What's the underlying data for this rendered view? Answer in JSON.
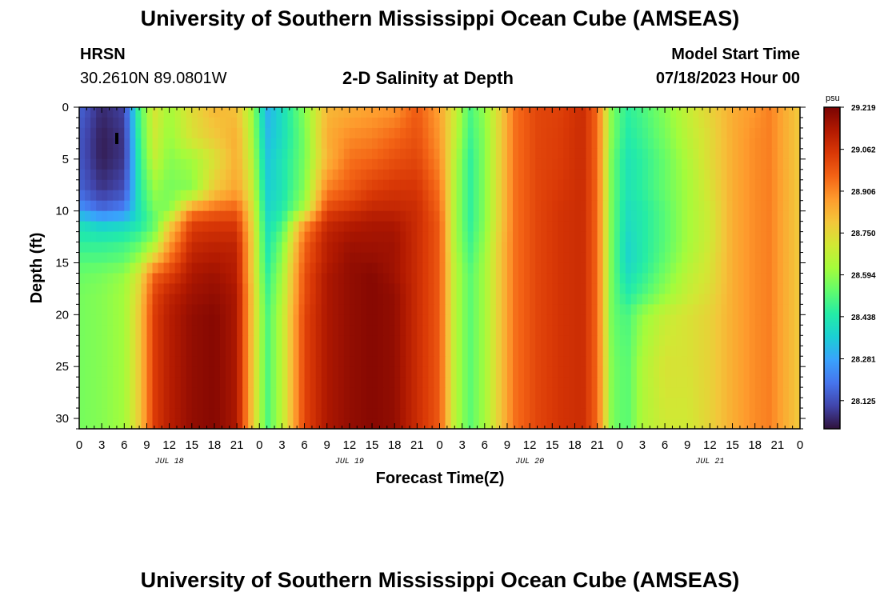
{
  "header": {
    "title": "University of Southern Mississippi Ocean Cube (AMSEAS)",
    "station_name": "HRSN",
    "station_coords": "30.2610N  89.0801W",
    "plot_subtitle": "2-D Salinity at Depth",
    "model_start_label": "Model Start Time",
    "model_start_value": "07/18/2023 Hour 00"
  },
  "footer": {
    "title": "University of Southern Mississippi Ocean Cube (AMSEAS)"
  },
  "chart_data": {
    "type": "heatmap",
    "title": "2-D Salinity at Depth",
    "xlabel": "Forecast Time(Z)",
    "ylabel": "Depth (ft)",
    "x_units": "hours since 07/18/2023 00Z",
    "xlim": [
      0,
      96
    ],
    "ylim": [
      0,
      31
    ],
    "y_inverted": true,
    "x_tick_values": [
      0,
      3,
      6,
      9,
      12,
      15,
      18,
      21,
      24,
      27,
      30,
      33,
      36,
      39,
      42,
      45,
      48,
      51,
      54,
      57,
      60,
      63,
      66,
      69,
      72,
      75,
      78,
      81,
      84,
      87,
      90,
      93,
      96
    ],
    "x_tick_labels": [
      "0",
      "3",
      "6",
      "9",
      "12",
      "15",
      "18",
      "21",
      "0",
      "3",
      "6",
      "9",
      "12",
      "15",
      "18",
      "21",
      "0",
      "3",
      "6",
      "9",
      "12",
      "15",
      "18",
      "21",
      "0",
      "3",
      "6",
      "9",
      "12",
      "15",
      "18",
      "21",
      "0"
    ],
    "day_labels": [
      {
        "label": "JUL 18",
        "hour": 12
      },
      {
        "label": "JUL 19",
        "hour": 36
      },
      {
        "label": "JUL 20",
        "hour": 60
      },
      {
        "label": "JUL 21",
        "hour": 84
      }
    ],
    "y_tick_values": [
      0,
      5,
      10,
      15,
      20,
      25,
      30
    ],
    "y_tick_labels": [
      "0",
      "5",
      "10",
      "15",
      "20",
      "25",
      "30"
    ],
    "colorbar": {
      "units": "psu",
      "min": 28.02,
      "max": 29.219,
      "tick_labels": [
        "29.219",
        "29.062",
        "28.906",
        "28.750",
        "28.594",
        "28.438",
        "28.281",
        "28.125"
      ],
      "tick_values": [
        29.219,
        29.062,
        28.906,
        28.75,
        28.594,
        28.438,
        28.281,
        28.125
      ],
      "colormap": [
        "#30123b",
        "#4145ab",
        "#4675ed",
        "#39a2fc",
        "#1bcfd4",
        "#24eca6",
        "#61fc6c",
        "#a4fc3b",
        "#d1e834",
        "#f3c63a",
        "#fe9b2d",
        "#f36315",
        "#d93806",
        "#b11901",
        "#7a0403"
      ]
    },
    "depths_ft": [
      0,
      3,
      5,
      8,
      10,
      11,
      13,
      15,
      16,
      18,
      20,
      25,
      31
    ],
    "hours": [
      0,
      3,
      6,
      8,
      10,
      12,
      15,
      18,
      21,
      23,
      25,
      27,
      30,
      33,
      36,
      39,
      42,
      45,
      48,
      50,
      52,
      54,
      56,
      58,
      61,
      64,
      67,
      69,
      71,
      73,
      75,
      78,
      81,
      84,
      87,
      90,
      92,
      94,
      96
    ],
    "salinity_psu": [
      [
        28.16,
        28.06,
        28.1,
        28.5,
        28.72,
        28.62,
        28.74,
        28.82,
        28.8,
        28.62,
        28.3,
        28.4,
        28.58,
        28.82,
        28.84,
        28.86,
        28.88,
        28.98,
        28.86,
        28.7,
        28.5,
        28.6,
        28.76,
        28.94,
        29.02,
        29.03,
        29.08,
        28.96,
        28.56,
        28.46,
        28.5,
        28.58,
        28.68,
        28.76,
        28.84,
        28.88,
        28.92,
        28.84,
        28.78
      ],
      [
        28.14,
        28.04,
        28.08,
        28.48,
        28.7,
        28.6,
        28.72,
        28.78,
        28.84,
        28.64,
        28.32,
        28.4,
        28.56,
        28.84,
        28.9,
        28.92,
        28.96,
        29.0,
        28.88,
        28.68,
        28.48,
        28.58,
        28.76,
        28.94,
        29.02,
        29.04,
        29.08,
        28.96,
        28.56,
        28.44,
        28.48,
        28.56,
        28.66,
        28.74,
        28.84,
        28.9,
        28.92,
        28.84,
        28.78
      ],
      [
        28.14,
        28.04,
        28.08,
        28.46,
        28.68,
        28.58,
        28.62,
        28.72,
        28.84,
        28.66,
        28.34,
        28.42,
        28.56,
        28.82,
        28.94,
        28.96,
        29.0,
        29.02,
        28.9,
        28.66,
        28.46,
        28.58,
        28.76,
        28.94,
        29.02,
        29.04,
        29.08,
        28.96,
        28.54,
        28.42,
        28.46,
        28.54,
        28.64,
        28.74,
        28.84,
        28.9,
        28.92,
        28.84,
        28.78
      ],
      [
        28.16,
        28.08,
        28.12,
        28.44,
        28.6,
        28.56,
        28.58,
        28.78,
        28.86,
        28.7,
        28.36,
        28.42,
        28.58,
        28.92,
        28.98,
        29.04,
        29.06,
        29.06,
        28.94,
        28.64,
        28.46,
        28.58,
        28.76,
        28.94,
        29.02,
        29.05,
        29.08,
        28.96,
        28.54,
        28.42,
        28.46,
        28.54,
        28.62,
        28.72,
        28.84,
        28.9,
        28.92,
        28.84,
        28.78
      ],
      [
        28.26,
        28.18,
        28.22,
        28.42,
        28.56,
        28.58,
        28.9,
        28.96,
        28.98,
        28.74,
        28.38,
        28.44,
        28.64,
        29.02,
        29.06,
        29.1,
        29.1,
        29.08,
        28.96,
        28.64,
        28.46,
        28.58,
        28.76,
        28.94,
        29.02,
        29.06,
        29.08,
        28.96,
        28.54,
        28.4,
        28.44,
        28.52,
        28.62,
        28.7,
        28.84,
        28.9,
        28.92,
        28.84,
        28.78
      ],
      [
        28.4,
        28.34,
        28.36,
        28.42,
        28.52,
        28.74,
        29.02,
        29.04,
        29.04,
        28.76,
        28.4,
        28.48,
        28.86,
        29.08,
        29.12,
        29.14,
        29.14,
        29.08,
        28.98,
        28.64,
        28.46,
        28.58,
        28.76,
        28.94,
        29.02,
        29.06,
        29.08,
        28.96,
        28.54,
        28.4,
        28.44,
        28.52,
        28.62,
        28.7,
        28.84,
        28.9,
        28.92,
        28.84,
        28.78
      ],
      [
        28.46,
        28.46,
        28.48,
        28.52,
        28.62,
        28.86,
        29.08,
        29.1,
        29.1,
        28.78,
        28.42,
        28.56,
        28.96,
        29.12,
        29.16,
        29.16,
        29.16,
        29.08,
        28.98,
        28.64,
        28.48,
        28.6,
        28.78,
        28.94,
        29.02,
        29.06,
        29.08,
        28.96,
        28.54,
        28.38,
        28.44,
        28.52,
        28.62,
        28.7,
        28.84,
        28.9,
        28.92,
        28.84,
        28.78
      ],
      [
        28.52,
        28.52,
        28.54,
        28.64,
        28.82,
        28.96,
        29.12,
        29.14,
        29.12,
        28.78,
        28.44,
        28.6,
        28.98,
        29.12,
        29.18,
        29.18,
        29.16,
        29.08,
        28.98,
        28.66,
        28.5,
        28.62,
        28.78,
        28.94,
        29.02,
        29.06,
        29.08,
        28.96,
        28.54,
        28.38,
        28.44,
        28.54,
        28.64,
        28.72,
        28.84,
        28.9,
        28.92,
        28.84,
        28.78
      ],
      [
        28.54,
        28.56,
        28.6,
        28.72,
        28.96,
        29.02,
        29.14,
        29.16,
        29.12,
        28.78,
        28.46,
        28.62,
        29.0,
        29.14,
        29.18,
        29.2,
        29.16,
        29.08,
        28.98,
        28.66,
        28.52,
        28.62,
        28.78,
        28.94,
        29.02,
        29.06,
        29.08,
        28.96,
        28.54,
        28.4,
        28.46,
        28.56,
        28.66,
        28.72,
        28.84,
        28.9,
        28.92,
        28.84,
        28.78
      ],
      [
        28.56,
        28.58,
        28.62,
        28.76,
        29.02,
        29.1,
        29.16,
        29.18,
        29.14,
        28.8,
        28.48,
        28.64,
        29.0,
        29.14,
        29.18,
        29.2,
        29.18,
        29.08,
        28.98,
        28.66,
        28.52,
        28.62,
        28.78,
        28.94,
        29.02,
        29.06,
        29.08,
        28.96,
        28.54,
        28.44,
        28.5,
        28.6,
        28.68,
        28.74,
        28.84,
        28.9,
        28.92,
        28.84,
        28.78
      ],
      [
        28.56,
        28.58,
        28.62,
        28.78,
        29.04,
        29.12,
        29.18,
        29.2,
        29.14,
        28.8,
        28.5,
        28.66,
        29.02,
        29.14,
        29.18,
        29.2,
        29.18,
        29.08,
        28.98,
        28.66,
        28.52,
        28.62,
        28.78,
        28.94,
        29.02,
        29.06,
        29.08,
        28.96,
        28.54,
        28.5,
        28.6,
        28.68,
        28.72,
        28.76,
        28.84,
        28.9,
        28.92,
        28.84,
        28.78
      ],
      [
        28.56,
        28.58,
        28.62,
        28.78,
        29.04,
        29.12,
        29.18,
        29.2,
        29.14,
        28.8,
        28.5,
        28.66,
        29.02,
        29.14,
        29.18,
        29.2,
        29.18,
        29.08,
        28.98,
        28.66,
        28.52,
        28.62,
        28.78,
        28.94,
        29.02,
        29.06,
        29.08,
        28.96,
        28.56,
        28.52,
        28.64,
        28.72,
        28.72,
        28.76,
        28.84,
        28.9,
        28.92,
        28.84,
        28.78
      ],
      [
        28.56,
        28.58,
        28.62,
        28.78,
        29.04,
        29.12,
        29.18,
        29.2,
        29.14,
        28.8,
        28.5,
        28.66,
        29.02,
        29.14,
        29.18,
        29.2,
        29.18,
        29.08,
        28.98,
        28.66,
        28.52,
        28.62,
        28.78,
        28.94,
        29.02,
        29.06,
        29.08,
        28.96,
        28.56,
        28.52,
        28.64,
        28.7,
        28.7,
        28.76,
        28.84,
        28.9,
        28.92,
        28.84,
        28.78
      ]
    ]
  }
}
